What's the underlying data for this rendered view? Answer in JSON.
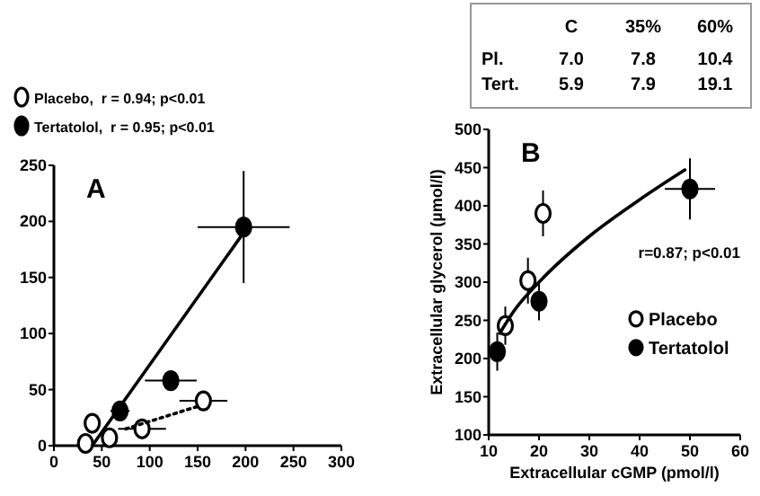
{
  "chart_data": [
    {
      "type": "scatter",
      "title": "A",
      "xlim": [
        0,
        300
      ],
      "ylim": [
        0,
        250
      ],
      "xticks": [
        0,
        50,
        100,
        150,
        200,
        250,
        300
      ],
      "yticks": [
        0,
        50,
        100,
        150,
        200,
        250
      ],
      "legend": "top left",
      "marker": "circle",
      "annotations": [
        ",  r = 0.94; p<0.01",
        ",  r = 0.95; p<0.01"
      ],
      "series": [
        {
          "name": "Placebo",
          "color": "#ffffff",
          "x": [
            33,
            40,
            58,
            92,
            156
          ],
          "values": [
            2,
            20,
            7,
            15,
            40
          ],
          "xerrors": [
            null,
            null,
            null,
            25,
            25
          ],
          "errors": [
            null,
            null,
            null,
            null,
            null
          ]
        },
        {
          "name": "Tertatolol",
          "color": "#000000",
          "x": [
            69,
            122,
            198
          ],
          "values": [
            31,
            58,
            195
          ],
          "xerrors": [
            10,
            27,
            48
          ],
          "errors": [
            null,
            null,
            50
          ]
        },
        {
          "type": "line",
          "color": "#000000",
          "x": [
            40,
            198
          ],
          "values": [
            0,
            190
          ],
          "line_style": "solid",
          "marker": "none"
        },
        {
          "type": "line",
          "color": "#000000",
          "x": [
            75,
            150
          ],
          "values": [
            15,
            35
          ],
          "line_style": "dotted",
          "marker": "none"
        }
      ]
    },
    {
      "type": "scatter",
      "title": "B",
      "xlabel": "Extracellular cGMP (pmol/l)",
      "ylabel": "Extracellular glycerol (µmol/l)",
      "xlim": [
        10,
        60
      ],
      "ylim": [
        100,
        500
      ],
      "xticks": [
        10,
        20,
        30,
        40,
        50,
        60
      ],
      "yticks": [
        100,
        150,
        200,
        250,
        300,
        350,
        400,
        450,
        500
      ],
      "legend": "right",
      "marker": "circle",
      "annotations": [
        "r=0.87; p<0.01"
      ],
      "series": [
        {
          "name": "Placebo",
          "color": "#ffffff",
          "x": [
            13.3,
            17.8,
            20.8
          ],
          "values": [
            243,
            302,
            390
          ],
          "xerrors": [
            null,
            null,
            null
          ],
          "errors": [
            25,
            30,
            30
          ]
        },
        {
          "name": "Tertatolol",
          "color": "#000000",
          "x": [
            11.7,
            20,
            50
          ],
          "values": [
            209,
            275,
            422
          ],
          "xerrors": [
            null,
            null,
            5
          ],
          "errors": [
            25,
            25,
            40
          ]
        },
        {
          "type": "line",
          "color": "#000000",
          "x": [
            12.2,
            15,
            20,
            30,
            40,
            49
          ],
          "values": [
            233,
            262,
            300,
            360,
            408,
            447
          ],
          "line_style": "solid",
          "marker": "none"
        }
      ]
    },
    {
      "type": "heatmap",
      "categories": [
        "C",
        "35%",
        "60%"
      ],
      "y_categories": [
        "Pl.",
        "Tert."
      ],
      "cells": [
        [
          7.0,
          7.8,
          10.4
        ],
        [
          5.9,
          7.9,
          19.1
        ]
      ],
      "cell_labels": [
        [
          "7.0",
          "7.8",
          "10.4"
        ],
        [
          "5.9",
          "7.9",
          "19.1"
        ]
      ]
    }
  ]
}
